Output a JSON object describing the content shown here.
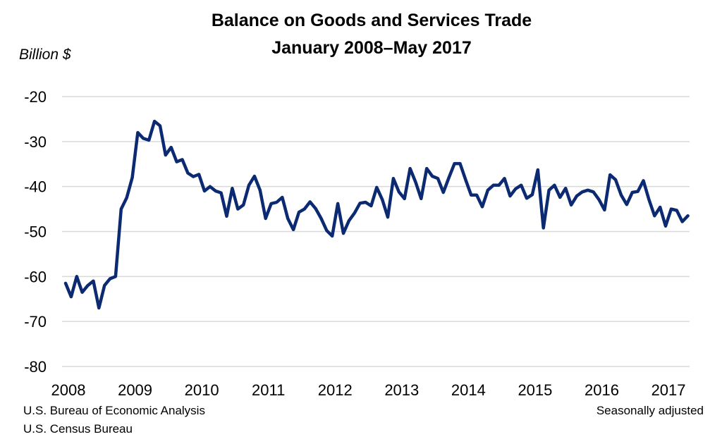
{
  "chart_data": {
    "type": "line",
    "title": "Balance on Goods and Services Trade",
    "subtitle": "January 2008–May 2017",
    "ylabel": "Billion $",
    "xlabel": "",
    "frequency": "monthly",
    "x_start": "2008-01",
    "x_end": "2017-05",
    "ylim": [
      -80,
      -20
    ],
    "yticks": [
      -20,
      -30,
      -40,
      -50,
      -60,
      -70,
      -80
    ],
    "xticks": [
      "2008",
      "2009",
      "2010",
      "2011",
      "2012",
      "2013",
      "2014",
      "2015",
      "2016",
      "2017"
    ],
    "grid": true,
    "line_color": "#0b2a72",
    "grid_color": "#d9d9d9",
    "values": [
      -61.5,
      -64.5,
      -60,
      -63.5,
      -62,
      -61,
      -67,
      -62,
      -60.5,
      -60,
      -45,
      -42.5,
      -38,
      -28,
      -29.3,
      -29.7,
      -25.5,
      -26.5,
      -33,
      -31.3,
      -34.5,
      -34,
      -37,
      -37.8,
      -37.3,
      -41,
      -40,
      -41,
      -41.4,
      -46.6,
      -40.4,
      -45,
      -44.1,
      -39.7,
      -37.7,
      -40.8,
      -47.1,
      -43.8,
      -43.5,
      -42.4,
      -47.1,
      -49.6,
      -45.7,
      -45,
      -43.4,
      -44.9,
      -47.1,
      -49.8,
      -51,
      -43.8,
      -50.4,
      -47.6,
      -45.9,
      -43.7,
      -43.5,
      -44.3,
      -40.2,
      -42.9,
      -46.8,
      -38.2,
      -41.2,
      -42.7,
      -36,
      -39,
      -42.7,
      -36,
      -37.7,
      -38.2,
      -41.3,
      -38,
      -34.9,
      -34.9,
      -38.5,
      -41.9,
      -41.9,
      -44.5,
      -40.8,
      -39.7,
      -39.7,
      -38.2,
      -42.1,
      -40.5,
      -39.7,
      -42.6,
      -41.8,
      -36.3,
      -49.2,
      -40.8,
      -39.7,
      -42.4,
      -40.4,
      -44.1,
      -42.1,
      -41.2,
      -40.8,
      -41.2,
      -42.9,
      -45.2,
      -37.4,
      -38.5,
      -41.9,
      -44,
      -41.3,
      -41.1,
      -38.7,
      -42.9,
      -46.5,
      -44.6,
      -48.8,
      -45,
      -45.3,
      -47.8,
      -46.5
    ]
  },
  "footer": {
    "source_1": "U.S. Bureau of Economic Analysis",
    "source_2": "U.S. Census Bureau",
    "note": "Seasonally adjusted"
  }
}
